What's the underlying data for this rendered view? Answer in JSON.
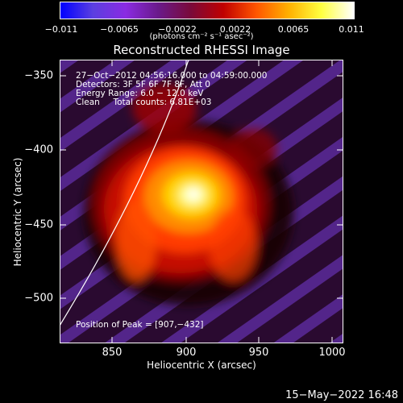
{
  "colorbar": {
    "ticks": [
      "−0.011",
      "−0.0065",
      "−0.0022",
      "0.0022",
      "0.0065",
      "0.011"
    ],
    "units": "(photons cm⁻² s⁻¹ asec⁻²)",
    "stops": [
      "#0000ff",
      "#5b3fe0",
      "#8a2be2",
      "#6a1a8a",
      "#7a0a3a",
      "#c00000",
      "#ff5500",
      "#ffb000",
      "#ffff40",
      "#ffffff"
    ]
  },
  "title": "Reconstructed RHESSI Image",
  "info": {
    "time": "27−Oct−2012 04:56:16.000 to 04:59:00.000",
    "detectors": "Detectors: 3F 5F 6F 7F 8F, Att 0",
    "energy": "Energy Range: 6.0 − 12.0 keV",
    "clean": "Clean     Total counts: 6.81E+03",
    "peak": "Position of Peak = [907,−432]"
  },
  "axes": {
    "xlabel": "Heliocentric X (arcsec)",
    "ylabel": "Heliocentric Y (arcsec)",
    "xticks": [
      "850",
      "900",
      "950",
      "1000"
    ],
    "yticks": [
      "−350",
      "−400",
      "−450",
      "−500"
    ]
  },
  "timestamp": "15−May−2022 16:48",
  "chart_data": {
    "type": "heatmap",
    "title": "Reconstructed RHESSI Image",
    "xlabel": "Heliocentric X (arcsec)",
    "ylabel": "Heliocentric Y (arcsec)",
    "xlim": [
      815,
      1005
    ],
    "ylim": [
      -535,
      -337
    ],
    "zlim": [
      -0.011,
      0.011
    ],
    "peak": [
      907,
      -432
    ],
    "colorbar_ticks": [
      -0.011,
      -0.0065,
      -0.0022,
      0.0022,
      0.0065,
      0.011
    ],
    "colormap": "blue-purple-red-yellow-white"
  }
}
